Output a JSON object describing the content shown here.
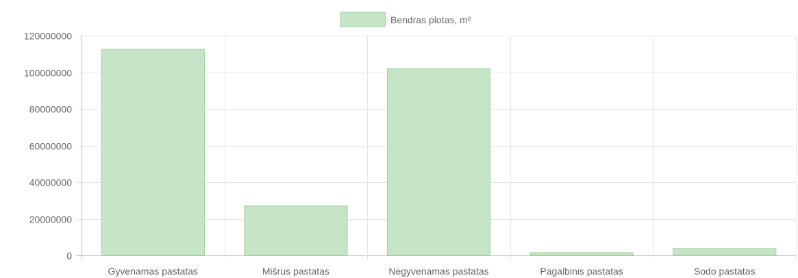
{
  "chart_data": {
    "type": "bar",
    "categories": [
      "Gyvenamas pastatas",
      "Mišrus pastatas",
      "Negyvenamas pastatas",
      "Pagalbinis pastatas",
      "Sodo pastatas"
    ],
    "series": [
      {
        "name": "Bendras plotas, m²",
        "values": [
          112500000,
          27000000,
          102000000,
          1500000,
          3800000
        ]
      }
    ],
    "y_ticks": [
      "0",
      "20000000",
      "40000000",
      "60000000",
      "80000000",
      "100000000",
      "120000000"
    ],
    "ylim": [
      0,
      120000000
    ],
    "grid": true,
    "legend_position": "top-center",
    "colors": {
      "bar_fill": "#c6e4c6",
      "bar_stroke": "#9fd09f",
      "grid": "#e6e6e6",
      "axis": "#bdbdbd",
      "text": "#666666"
    }
  }
}
